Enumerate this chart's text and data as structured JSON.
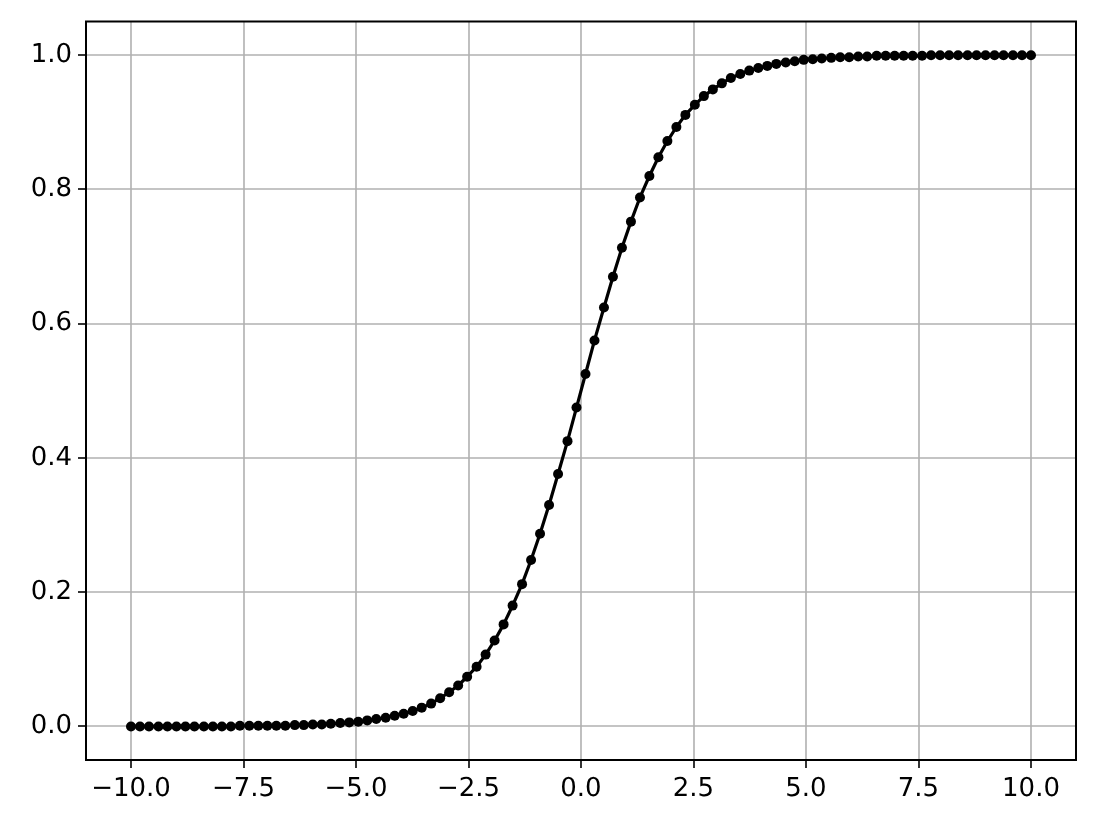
{
  "chart_data": {
    "type": "line",
    "x": [
      -10.0,
      -9.8,
      -9.6,
      -9.39,
      -9.19,
      -8.99,
      -8.79,
      -8.59,
      -8.38,
      -8.18,
      -7.98,
      -7.78,
      -7.58,
      -7.37,
      -7.17,
      -6.97,
      -6.77,
      -6.57,
      -6.36,
      -6.16,
      -5.96,
      -5.76,
      -5.56,
      -5.35,
      -5.15,
      -4.95,
      -4.75,
      -4.55,
      -4.34,
      -4.14,
      -3.94,
      -3.74,
      -3.54,
      -3.33,
      -3.13,
      -2.93,
      -2.73,
      -2.53,
      -2.32,
      -2.12,
      -1.92,
      -1.72,
      -1.52,
      -1.31,
      -1.11,
      -0.91,
      -0.71,
      -0.51,
      -0.3,
      -0.1,
      0.1,
      0.3,
      0.51,
      0.71,
      0.91,
      1.11,
      1.31,
      1.52,
      1.72,
      1.92,
      2.12,
      2.32,
      2.53,
      2.73,
      2.93,
      3.13,
      3.33,
      3.54,
      3.74,
      3.94,
      4.14,
      4.34,
      4.55,
      4.75,
      4.95,
      5.15,
      5.35,
      5.56,
      5.76,
      5.96,
      6.16,
      6.36,
      6.57,
      6.77,
      6.97,
      7.17,
      7.37,
      7.58,
      7.78,
      7.98,
      8.18,
      8.38,
      8.59,
      8.79,
      8.99,
      9.19,
      9.39,
      9.6,
      9.8,
      10.0
    ],
    "values": [
      0.0,
      0.0,
      0.0,
      0.0,
      0.0,
      0.0,
      0.0,
      0.0,
      0.0,
      0.0,
      0.0,
      0.0,
      0.001,
      0.001,
      0.001,
      0.001,
      0.001,
      0.001,
      0.002,
      0.002,
      0.003,
      0.003,
      0.004,
      0.005,
      0.006,
      0.007,
      0.009,
      0.011,
      0.013,
      0.016,
      0.019,
      0.023,
      0.028,
      0.034,
      0.042,
      0.051,
      0.061,
      0.074,
      0.089,
      0.107,
      0.128,
      0.152,
      0.18,
      0.212,
      0.248,
      0.287,
      0.33,
      0.376,
      0.425,
      0.475,
      0.525,
      0.575,
      0.624,
      0.67,
      0.713,
      0.752,
      0.788,
      0.82,
      0.848,
      0.872,
      0.893,
      0.911,
      0.926,
      0.939,
      0.949,
      0.958,
      0.966,
      0.972,
      0.977,
      0.981,
      0.984,
      0.987,
      0.989,
      0.991,
      0.993,
      0.994,
      0.995,
      0.996,
      0.997,
      0.997,
      0.998,
      0.998,
      0.999,
      0.999,
      0.999,
      0.999,
      0.999,
      0.999,
      1.0,
      1.0,
      1.0,
      1.0,
      1.0,
      1.0,
      1.0,
      1.0,
      1.0,
      1.0,
      1.0,
      1.0
    ],
    "color": "#000000",
    "xlim": [
      -11,
      11
    ],
    "ylim": [
      -0.05,
      1.05
    ],
    "xticks": [
      {
        "value": -10,
        "label": "−10.0"
      },
      {
        "value": -7.5,
        "label": "−7.5"
      },
      {
        "value": -5,
        "label": "−5.0"
      },
      {
        "value": -2.5,
        "label": "−2.5"
      },
      {
        "value": 0,
        "label": "0.0"
      },
      2.5,
      {
        "value": 5,
        "label": "5.0"
      },
      7.5,
      {
        "value": 10,
        "label": "10.0"
      }
    ],
    "yticks": [
      {
        "value": 0,
        "label": "0.0"
      },
      0.2,
      0.4,
      0.6,
      0.8,
      {
        "value": 1,
        "label": "1.0"
      }
    ],
    "grid": true,
    "marker": "circle",
    "line_style": "solid"
  }
}
